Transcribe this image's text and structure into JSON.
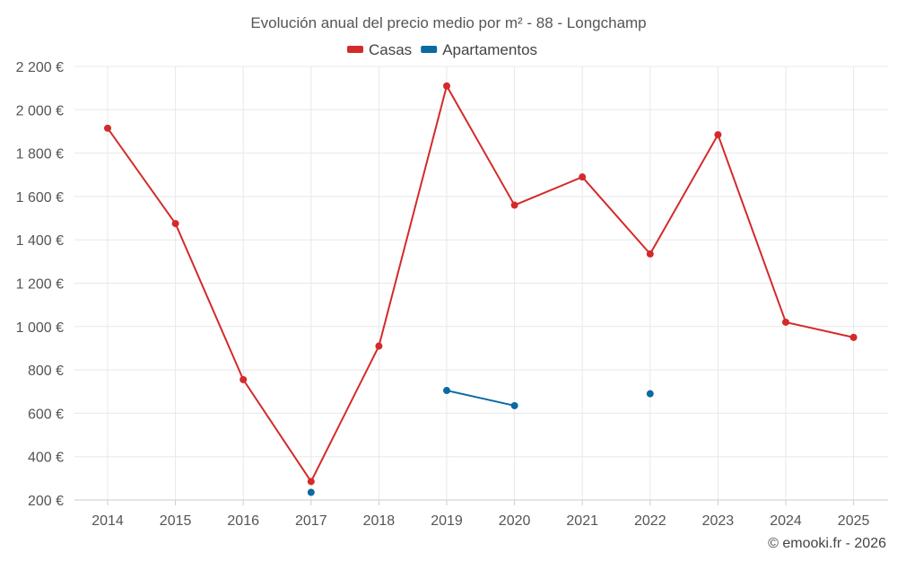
{
  "chart_data": {
    "type": "line",
    "title": "Evolución anual del precio medio por m² - 88 - Longchamp",
    "xlabel": "",
    "ylabel": "",
    "categories": [
      "2014",
      "2015",
      "2016",
      "2017",
      "2018",
      "2019",
      "2020",
      "2021",
      "2022",
      "2023",
      "2024",
      "2025"
    ],
    "ylim": [
      200,
      2200
    ],
    "yticks": [
      200,
      400,
      600,
      800,
      1000,
      1200,
      1400,
      1600,
      1800,
      2000,
      2200
    ],
    "ytick_labels": [
      "200 €",
      "400 €",
      "600 €",
      "800 €",
      "1 000 €",
      "1 200 €",
      "1 400 €",
      "1 600 €",
      "1 800 €",
      "2 000 €",
      "2 200 €"
    ],
    "grid": true,
    "legend_position": "top-center",
    "series": [
      {
        "name": "Casas",
        "color": "#d42a2a",
        "values": [
          1915,
          1475,
          755,
          285,
          910,
          2110,
          1560,
          1690,
          1335,
          1885,
          1020,
          950
        ]
      },
      {
        "name": "Apartamentos",
        "color": "#0b6aa2",
        "values": [
          null,
          null,
          null,
          235,
          null,
          705,
          635,
          null,
          690,
          null,
          null,
          null
        ]
      }
    ]
  },
  "credit": "© emooki.fr - 2026"
}
